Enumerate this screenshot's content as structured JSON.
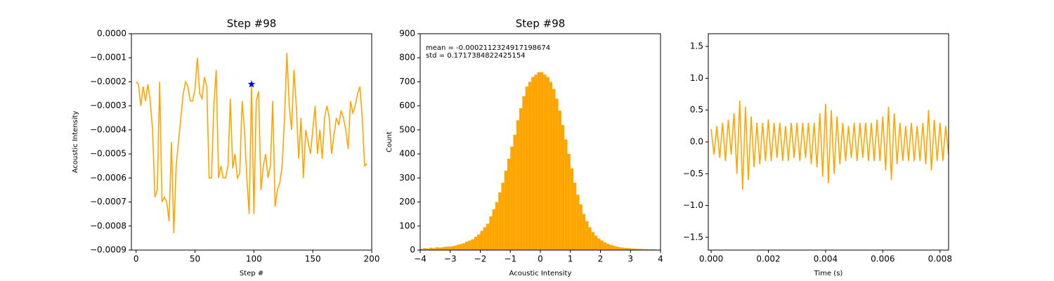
{
  "chart_data": [
    {
      "type": "line",
      "title": "Step #98",
      "xlabel": "Step #",
      "ylabel": "Acoustic Intensity",
      "color": "#ffa500",
      "x": [
        0,
        2,
        4,
        6,
        8,
        10,
        12,
        14,
        16,
        18,
        20,
        22,
        24,
        26,
        28,
        30,
        32,
        34,
        36,
        38,
        40,
        42,
        44,
        46,
        48,
        50,
        52,
        54,
        56,
        58,
        60,
        62,
        64,
        66,
        68,
        70,
        72,
        74,
        76,
        78,
        80,
        82,
        84,
        86,
        88,
        90,
        92,
        94,
        96,
        98,
        100,
        102,
        104,
        106,
        108,
        110,
        112,
        114,
        116,
        118,
        120,
        122,
        124,
        126,
        128,
        130,
        132,
        134,
        136,
        138,
        140,
        142,
        144,
        146,
        148,
        150,
        152,
        154,
        156,
        158,
        160,
        162,
        164,
        166,
        168,
        170,
        172,
        174,
        176,
        178,
        180,
        182,
        184,
        186,
        188,
        190,
        192,
        194,
        196
      ],
      "values": [
        -0.0002,
        -0.00021,
        -0.0003,
        -0.00022,
        -0.00028,
        -0.00021,
        -0.00028,
        -0.0004,
        -0.00068,
        -0.00065,
        -0.0002,
        -0.0007,
        -0.00068,
        -0.0007,
        -0.00078,
        -0.00045,
        -0.00083,
        -0.00055,
        -0.00045,
        -0.00035,
        -0.00025,
        -0.0002,
        -0.00022,
        -0.00028,
        -0.00028,
        -0.00023,
        -0.0001,
        -0.00025,
        -0.00027,
        -0.00018,
        -0.00022,
        -0.0006,
        -0.0006,
        -0.0003,
        -0.00015,
        -0.0006,
        -0.00055,
        -0.0006,
        -0.0006,
        -0.00055,
        -0.00027,
        -0.00056,
        -0.0005,
        -0.0006,
        -0.00058,
        -0.00028,
        -0.0004,
        -0.0006,
        -0.00075,
        -0.00021,
        -0.00075,
        -0.00028,
        -0.00024,
        -0.00065,
        -0.00055,
        -0.0005,
        -0.0006,
        -0.00055,
        -0.00028,
        -0.00072,
        -0.00065,
        -0.00062,
        -0.00055,
        -0.00035,
        -8e-05,
        -0.0003,
        -0.0004,
        -0.00015,
        -0.0003,
        -0.00052,
        -0.00035,
        -0.0006,
        -0.0004,
        -0.00045,
        -0.0005,
        -0.0004,
        -0.0003,
        -0.0005,
        -0.0004,
        -0.00052,
        -0.00035,
        -0.0003,
        -0.00035,
        -0.0005,
        -0.00042,
        -0.00035,
        -0.00038,
        -0.00032,
        -0.00035,
        -0.0004,
        -0.00048,
        -0.00028,
        -0.00033,
        -0.0003,
        -0.00025,
        -0.00022,
        -0.00035,
        -0.00055,
        -0.00054
      ],
      "highlight": {
        "x": 98,
        "y": -0.00021,
        "color": "#0000ff"
      },
      "xlim": [
        -4,
        200
      ],
      "xticks": [
        0,
        50,
        100,
        150,
        200
      ],
      "ylim": [
        -0.0009,
        0
      ],
      "yticks": [
        {
          "value": -0.0009,
          "label": "−0.0009"
        },
        {
          "value": -0.0008,
          "label": "−0.0008"
        },
        {
          "value": -0.0007,
          "label": "−0.0007"
        },
        {
          "value": -0.0006,
          "label": "−0.0006"
        },
        {
          "value": -0.0005,
          "label": "−0.0005"
        },
        {
          "value": -0.0004,
          "label": "−0.0004"
        },
        {
          "value": -0.0003,
          "label": "−0.0003"
        },
        {
          "value": -0.0002,
          "label": "−0.0002"
        },
        {
          "value": -0.0001,
          "label": "−0.0001"
        },
        {
          "value": 0,
          "label": "0.0000"
        }
      ]
    },
    {
      "type": "histogram",
      "title": "Step #98",
      "xlabel": "Acoustic Intensity",
      "ylabel": "Count",
      "color": "#ffa500",
      "annotations": [
        "mean = -0.0002112324917198674",
        "std = 0.1717384822425154"
      ],
      "bins": [
        -4,
        -3.9,
        -3.8,
        -3.7,
        -3.6,
        -3.5,
        -3.4,
        -3.3,
        -3.2,
        -3.1,
        -3,
        -2.9,
        -2.8,
        -2.7,
        -2.6,
        -2.5,
        -2.4,
        -2.3,
        -2.2,
        -2.1,
        -2,
        -1.9,
        -1.8,
        -1.7,
        -1.6,
        -1.5,
        -1.4,
        -1.3,
        -1.2,
        -1.1,
        -1,
        -0.9,
        -0.8,
        -0.7,
        -0.6,
        -0.5,
        -0.4,
        -0.3,
        -0.2,
        -0.1,
        0,
        0.1,
        0.2,
        0.3,
        0.4,
        0.5,
        0.6,
        0.7,
        0.8,
        0.9,
        1,
        1.1,
        1.2,
        1.3,
        1.4,
        1.5,
        1.6,
        1.7,
        1.8,
        1.9,
        2,
        2.1,
        2.2,
        2.3,
        2.4,
        2.5,
        2.6,
        2.7,
        2.8,
        2.9,
        3,
        3.1,
        3.2,
        3.3,
        3.4,
        3.5,
        3.6,
        3.7,
        3.8,
        3.9,
        4
      ],
      "counts": [
        5,
        8,
        6,
        10,
        8,
        12,
        10,
        12,
        14,
        15,
        15,
        18,
        22,
        25,
        28,
        35,
        40,
        45,
        55,
        65,
        80,
        95,
        110,
        140,
        170,
        200,
        240,
        280,
        330,
        380,
        430,
        480,
        540,
        590,
        640,
        680,
        700,
        720,
        730,
        740,
        740,
        730,
        720,
        700,
        670,
        630,
        580,
        520,
        460,
        400,
        340,
        280,
        230,
        190,
        150,
        120,
        95,
        75,
        60,
        48,
        40,
        32,
        26,
        22,
        18,
        15,
        12,
        10,
        9,
        8,
        7,
        6,
        5,
        5,
        4,
        4,
        3,
        3,
        2,
        2
      ],
      "xlim": [
        -4,
        4
      ],
      "xticks": [
        {
          "value": -4,
          "label": "−4"
        },
        {
          "value": -3,
          "label": "−3"
        },
        {
          "value": -2,
          "label": "−2"
        },
        {
          "value": -1,
          "label": "−1"
        },
        0,
        1,
        2,
        3,
        4
      ],
      "ylim": [
        0,
        900
      ],
      "yticks": [
        0,
        100,
        200,
        300,
        400,
        500,
        600,
        700,
        800,
        900
      ]
    },
    {
      "type": "line",
      "xlabel": "Time (s)",
      "color": "#ffa500",
      "x": [
        0,
        0.0001,
        0.0002,
        0.0003,
        0.0004,
        0.0005,
        0.0006,
        0.0007,
        0.0008,
        0.0009,
        0.001,
        0.0011,
        0.0012,
        0.0013,
        0.0014,
        0.0015,
        0.0016,
        0.0017,
        0.0018,
        0.0019,
        0.002,
        0.0021,
        0.0022,
        0.0023,
        0.0024,
        0.0025,
        0.0026,
        0.0027,
        0.0028,
        0.0029,
        0.003,
        0.0031,
        0.0032,
        0.0033,
        0.0034,
        0.0035,
        0.0036,
        0.0037,
        0.0038,
        0.0039,
        0.004,
        0.0041,
        0.0042,
        0.0043,
        0.0044,
        0.0045,
        0.0046,
        0.0047,
        0.0048,
        0.0049,
        0.005,
        0.0051,
        0.0052,
        0.0053,
        0.0054,
        0.0055,
        0.0056,
        0.0057,
        0.0058,
        0.0059,
        0.006,
        0.0061,
        0.0062,
        0.0063,
        0.0064,
        0.0065,
        0.0066,
        0.0067,
        0.0068,
        0.0069,
        0.007,
        0.0071,
        0.0072,
        0.0073,
        0.0074,
        0.0075,
        0.0076,
        0.0077,
        0.0078,
        0.0079,
        0.008,
        0.0081,
        0.0082,
        0.0083
      ],
      "values": [
        0.2,
        -0.2,
        0.25,
        -0.25,
        0.3,
        -0.3,
        0.35,
        -0.2,
        0.45,
        -0.5,
        0.65,
        -0.75,
        0.55,
        -0.6,
        0.4,
        -0.4,
        0.3,
        -0.35,
        0.3,
        -0.3,
        0.35,
        -0.3,
        0.3,
        -0.25,
        0.3,
        -0.3,
        0.25,
        -0.3,
        0.3,
        -0.25,
        0.3,
        -0.3,
        0.3,
        -0.25,
        0.3,
        -0.35,
        0.3,
        -0.4,
        0.45,
        -0.55,
        0.6,
        -0.65,
        0.5,
        -0.5,
        0.4,
        -0.35,
        0.3,
        -0.3,
        0.25,
        -0.25,
        0.3,
        -0.3,
        0.3,
        -0.25,
        0.3,
        -0.3,
        0.3,
        -0.3,
        0.35,
        -0.3,
        0.4,
        -0.45,
        0.55,
        -0.6,
        0.45,
        -0.35,
        0.3,
        -0.3,
        0.25,
        -0.3,
        0.3,
        -0.3,
        0.25,
        -0.3,
        0.3,
        -0.35,
        0.5,
        -0.45,
        0.35,
        -0.3,
        0.3,
        -0.3,
        0.25,
        -0.2
      ],
      "xlim": [
        -0.0001,
        0.0083
      ],
      "xticks": [
        {
          "value": 0,
          "label": "0.000"
        },
        {
          "value": 0.002,
          "label": "0.002"
        },
        {
          "value": 0.004,
          "label": "0.004"
        },
        {
          "value": 0.006,
          "label": "0.006"
        },
        {
          "value": 0.008,
          "label": "0.008"
        }
      ],
      "ylim": [
        -1.7,
        1.7
      ],
      "yticks": [
        {
          "value": -1.5,
          "label": "−1.5"
        },
        {
          "value": -1,
          "label": "−1.0"
        },
        {
          "value": -0.5,
          "label": "−0.5"
        },
        {
          "value": 0,
          "label": "0.0"
        },
        {
          "value": 0.5,
          "label": "0.5"
        },
        {
          "value": 1,
          "label": "1.0"
        },
        {
          "value": 1.5,
          "label": "1.5"
        }
      ]
    }
  ]
}
